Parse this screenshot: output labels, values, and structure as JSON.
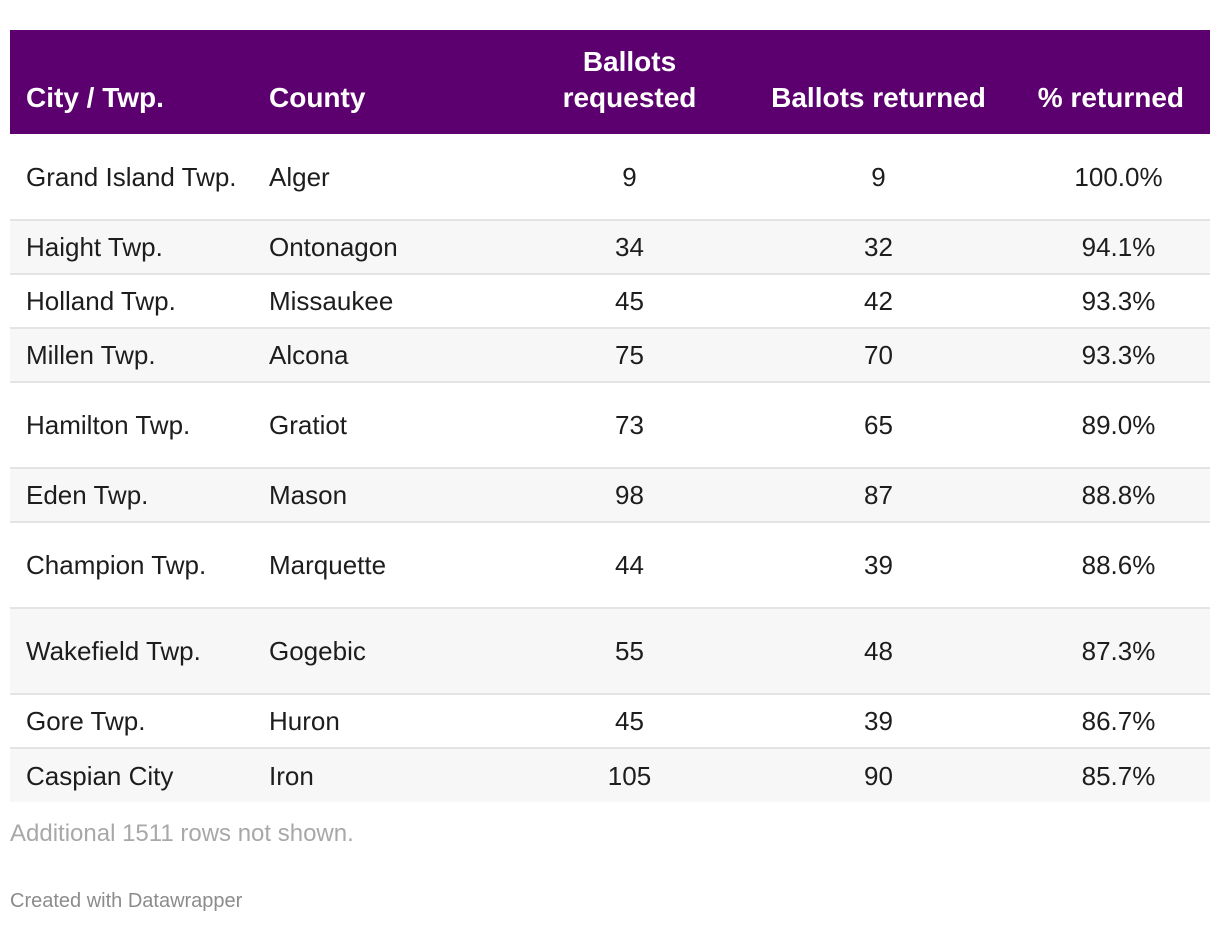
{
  "chart_data": {
    "type": "table",
    "columns": [
      "City / Twp.",
      "County",
      "Ballots requested",
      "Ballots returned",
      "% returned"
    ],
    "rows": [
      {
        "city": "Grand Island Twp.",
        "county": "Alger",
        "requested": "9",
        "returned": "9",
        "pct": "100.0%"
      },
      {
        "city": "Haight Twp.",
        "county": "Ontonagon",
        "requested": "34",
        "returned": "32",
        "pct": "94.1%"
      },
      {
        "city": "Holland Twp.",
        "county": "Missaukee",
        "requested": "45",
        "returned": "42",
        "pct": "93.3%"
      },
      {
        "city": "Millen Twp.",
        "county": "Alcona",
        "requested": "75",
        "returned": "70",
        "pct": "93.3%"
      },
      {
        "city": "Hamilton Twp.",
        "county": "Gratiot",
        "requested": "73",
        "returned": "65",
        "pct": "89.0%"
      },
      {
        "city": "Eden Twp.",
        "county": "Mason",
        "requested": "98",
        "returned": "87",
        "pct": "88.8%"
      },
      {
        "city": "Champion Twp.",
        "county": "Marquette",
        "requested": "44",
        "returned": "39",
        "pct": "88.6%"
      },
      {
        "city": "Wakefield Twp.",
        "county": "Gogebic",
        "requested": "55",
        "returned": "48",
        "pct": "87.3%"
      },
      {
        "city": "Gore Twp.",
        "county": "Huron",
        "requested": "45",
        "returned": "39",
        "pct": "86.7%"
      },
      {
        "city": "Caspian City",
        "county": "Iron",
        "requested": "105",
        "returned": "90",
        "pct": "85.7%"
      }
    ],
    "header_color": "#5c006f",
    "stripe_color": "#f7f7f7"
  },
  "footer": {
    "note": "Additional 1511 rows not shown.",
    "credit": "Created with Datawrapper"
  }
}
